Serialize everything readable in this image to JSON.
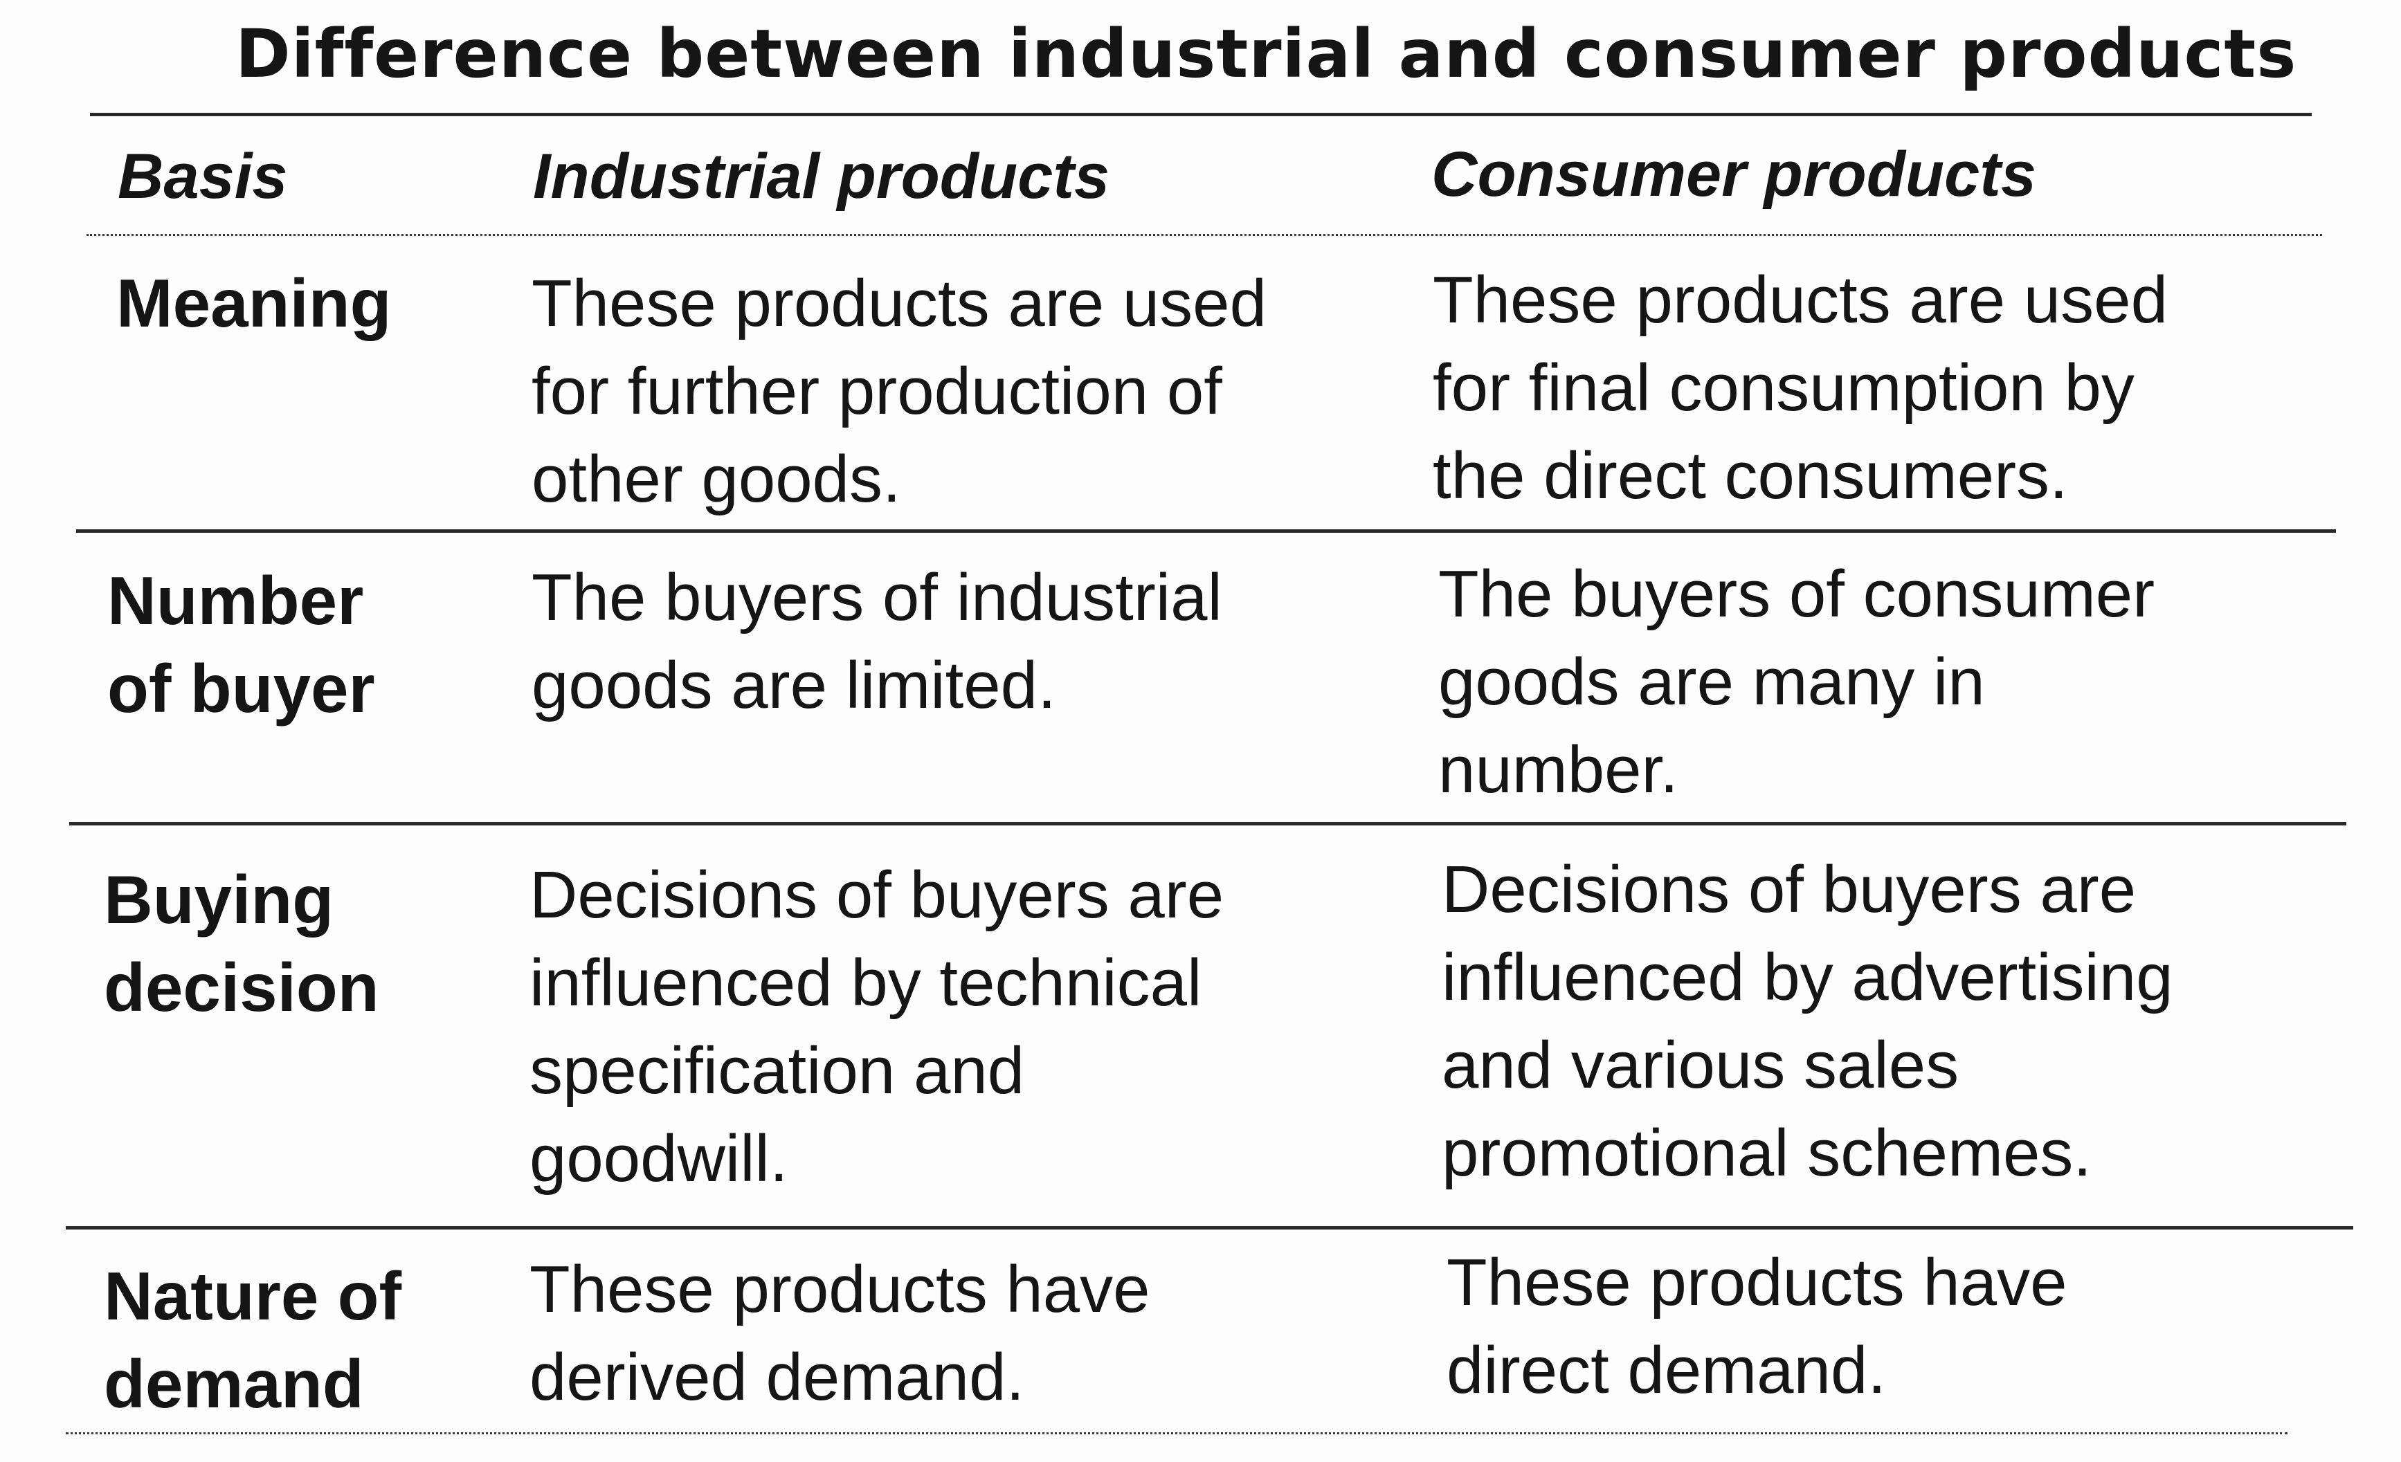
{
  "title": "Difference between industrial and consumer products",
  "table": {
    "headers": {
      "basis": "Basis",
      "industrial": "Industrial products",
      "consumer": "Consumer products"
    },
    "rows": [
      {
        "basis": "Meaning",
        "industrial": "These products are used\nfor further production of\nother goods.",
        "consumer": "These products are used\nfor final consumption by\nthe direct consumers."
      },
      {
        "basis": "Number\nof buyer",
        "industrial": "The buyers of industrial\ngoods are limited.",
        "consumer": "The buyers of consumer\ngoods are many in\nnumber."
      },
      {
        "basis": "Buying\ndecision",
        "industrial": "Decisions of buyers are\ninfluenced by technical\nspecification and\ngoodwill.",
        "consumer": "Decisions of buyers are\ninfluenced by advertising\nand various sales\npromotional schemes."
      },
      {
        "basis": "Nature of\ndemand",
        "industrial": "These products have\nderived demand.",
        "consumer": "These products have\ndirect demand."
      }
    ]
  }
}
